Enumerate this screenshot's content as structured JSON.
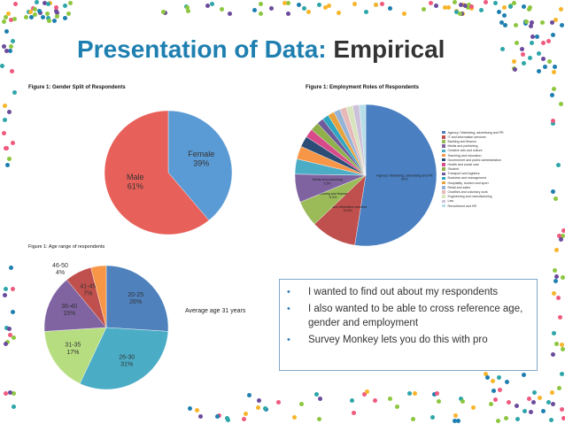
{
  "slide": {
    "title_accent": "Presentation of Data:",
    "title_dark": "Empirical",
    "decor_colors": [
      "#2ea6a9",
      "#8dc63f",
      "#f05a7e",
      "#f7b52c",
      "#6c4b9c",
      "#1e7fb0"
    ]
  },
  "figures": {
    "gender_caption": "Figure 1: Gender Split of Respondents",
    "employment_caption": "Figure 1: Employment Roles of Respondents",
    "age_caption": "Figure 1: Age range of respondents",
    "age_note": "Average age 31 years"
  },
  "chart_data": [
    {
      "type": "pie",
      "title": "Figure 1: Gender Split of Respondents",
      "slices": [
        {
          "label": "Female",
          "value": 39,
          "value_label": "39%",
          "color": "#5b9bd5"
        },
        {
          "label": "Male",
          "value": 61,
          "value_label": "61%",
          "color": "#e8605a"
        }
      ]
    },
    {
      "type": "pie",
      "title": "Figure 1: Employment Roles of Respondents",
      "legend_position": "right",
      "slices": [
        {
          "label": "Agency / Marketing, advertising and PR",
          "value": 53,
          "value_label": "53%",
          "color": "#4a7fc1",
          "inner_label": "Agency / Marketing, advertising and PR"
        },
        {
          "label": "IT and information services",
          "value": 10.5,
          "value_label": "10.5%",
          "color": "#c0504d",
          "inner_label": "IT and information services"
        },
        {
          "label": "Banking and finance",
          "value": 6,
          "value_label": "6.0%",
          "color": "#9bbb59",
          "inner_label": "Banking and finance"
        },
        {
          "label": "Media and publishing",
          "value": 6.5,
          "value_label": "6.5%",
          "color": "#7f63a1",
          "inner_label": "Media and publishing"
        },
        {
          "label": "Creative arts and culture",
          "value": 3.5,
          "value_label": "",
          "color": "#4bacc6",
          "inner_label": ""
        },
        {
          "label": "Teaching and education",
          "value": 3,
          "value_label": "",
          "color": "#f79646",
          "inner_label": ""
        },
        {
          "label": "Government and public administration",
          "value": 2.5,
          "value_label": "",
          "color": "#2c4d75",
          "inner_label": ""
        },
        {
          "label": "Health and social care",
          "value": 2,
          "value_label": "",
          "color": "#d84a8a",
          "inner_label": ""
        },
        {
          "label": "Student",
          "value": 2,
          "value_label": "",
          "color": "#8fb04a",
          "inner_label": ""
        },
        {
          "label": "Transport and logistics",
          "value": 1.5,
          "value_label": "",
          "color": "#6e5a9a",
          "inner_label": ""
        },
        {
          "label": "Business and management",
          "value": 1.5,
          "value_label": "",
          "color": "#2ea6c0",
          "inner_label": ""
        },
        {
          "label": "Hospitality, tourism and sport",
          "value": 1.5,
          "value_label": "",
          "color": "#e8a23c",
          "inner_label": ""
        },
        {
          "label": "Retail and sales",
          "value": 1.5,
          "value_label": "",
          "color": "#95b3d7",
          "inner_label": ""
        },
        {
          "label": "Charities and voluntary work",
          "value": 1.5,
          "value_label": "",
          "color": "#e6b9b8",
          "inner_label": ""
        },
        {
          "label": "Engineering and manufacturing",
          "value": 1.5,
          "value_label": "",
          "color": "#d7e4bd",
          "inner_label": ""
        },
        {
          "label": "Law",
          "value": 1.5,
          "value_label": "",
          "color": "#ccc1da",
          "inner_label": ""
        },
        {
          "label": "Recruitment and HR",
          "value": 1.5,
          "value_label": "",
          "color": "#b7dee8",
          "inner_label": ""
        }
      ]
    },
    {
      "type": "pie",
      "title": "Figure 1: Age range of respondents",
      "slices": [
        {
          "label": "20-25",
          "value": 26,
          "value_label": "26%",
          "color": "#4f81bd"
        },
        {
          "label": "26-30",
          "value": 31,
          "value_label": "31%",
          "color": "#4bacc6"
        },
        {
          "label": "31-35",
          "value": 17,
          "value_label": "17%",
          "color": "#b6dd80"
        },
        {
          "label": "36-40",
          "value": 15,
          "value_label": "15%",
          "color": "#8064a2"
        },
        {
          "label": "41-45",
          "value": 7,
          "value_label": "7%",
          "color": "#c0504d"
        },
        {
          "label": "46-50",
          "value": 4,
          "value_label": "4%",
          "color": "#f79646"
        }
      ]
    }
  ],
  "bullets": [
    {
      "mark": "•",
      "text": "I wanted to find out about my respondents"
    },
    {
      "mark": "•",
      "text": "I also wanted to be able to cross reference age, gender and employment"
    },
    {
      "mark": "•",
      "text": "Survey Monkey lets you do this with pro"
    }
  ]
}
